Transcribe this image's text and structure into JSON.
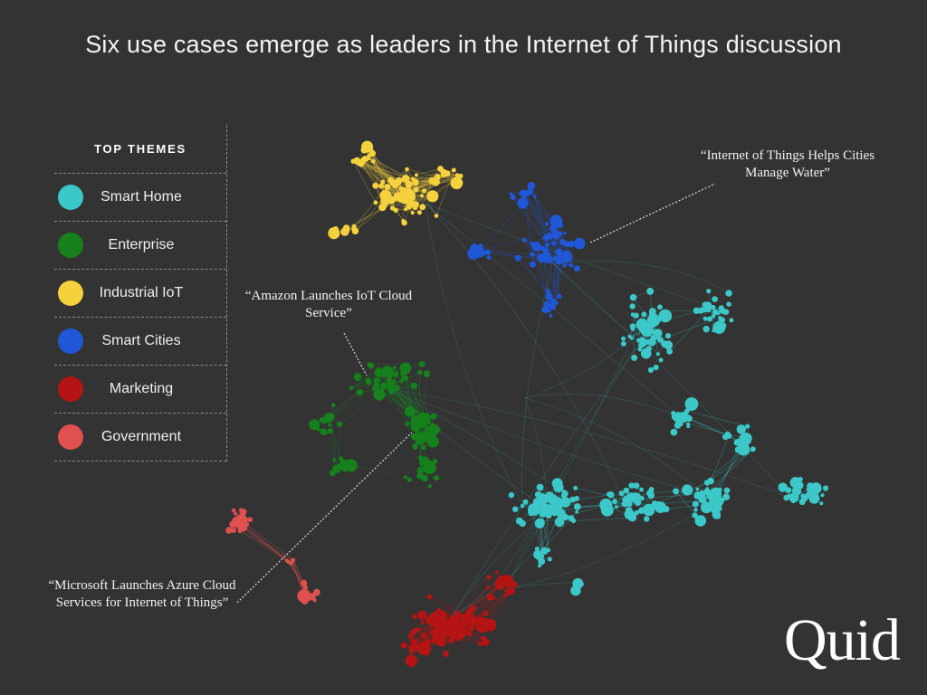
{
  "title": "Six use cases emerge as leaders in the Internet of Things discussion",
  "legend": {
    "header": "TOP THEMES",
    "items": [
      {
        "label": "Smart Home",
        "color": "#3cc8c8"
      },
      {
        "label": "Enterprise",
        "color": "#16801c"
      },
      {
        "label": "Industrial IoT",
        "color": "#f6d13e"
      },
      {
        "label": "Smart Cities",
        "color": "#1f57d6"
      },
      {
        "label": "Marketing",
        "color": "#b51414"
      },
      {
        "label": "Government",
        "color": "#e05050"
      }
    ]
  },
  "callouts": {
    "water": "“Internet of Things Helps Cities Manage Water”",
    "amazon": "“Amazon Launches IoT Cloud Service”",
    "azure": "“Microsoft Launches Azure Cloud Services for Internet of Things”"
  },
  "logo": "Quid"
}
